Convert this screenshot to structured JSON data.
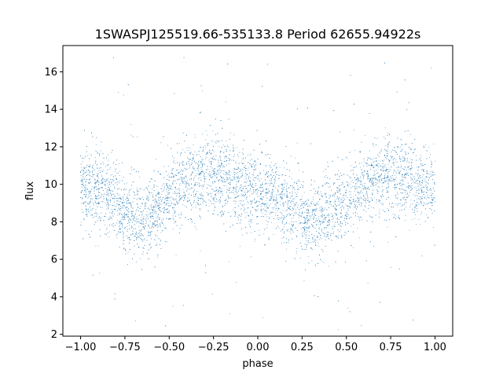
{
  "chart_data": {
    "type": "scatter",
    "title": "1SWASPJ125519.66-535133.8 Period 62655.94922s",
    "xlabel": "phase",
    "ylabel": "flux",
    "xlim": [
      -1.1,
      1.1
    ],
    "ylim": [
      1.9,
      17.4
    ],
    "x_ticks": [
      -1.0,
      -0.75,
      -0.5,
      -0.25,
      0.0,
      0.25,
      0.5,
      0.75,
      1.0
    ],
    "x_tick_labels": [
      "−1.00",
      "−0.75",
      "−0.50",
      "−0.25",
      "0.00",
      "0.25",
      "0.50",
      "0.75",
      "1.00"
    ],
    "y_ticks": [
      2,
      4,
      6,
      8,
      10,
      12,
      14,
      16
    ],
    "y_tick_labels": [
      "2",
      "4",
      "6",
      "8",
      "10",
      "12",
      "14",
      "16"
    ],
    "grid": false,
    "marker_color": "#1f77b4",
    "series": [
      {
        "name": "",
        "x": [
          -1.0,
          -0.95,
          -0.9,
          -0.85,
          -0.8,
          -0.75,
          -0.7,
          -0.65,
          -0.6,
          -0.55,
          -0.5,
          -0.45,
          -0.4,
          -0.35,
          -0.3,
          -0.25,
          -0.2,
          -0.15,
          -0.1,
          -0.05,
          0.0,
          0.05,
          0.1,
          0.15,
          0.2,
          0.25,
          0.3,
          0.35,
          0.4,
          0.45,
          0.5,
          0.55,
          0.6,
          0.65,
          0.7,
          0.75,
          0.8,
          0.85,
          0.9,
          0.95,
          1.0
        ],
        "y": [
          9.9,
          9.6,
          9.7,
          9.5,
          9.0,
          8.6,
          8.3,
          8.2,
          8.4,
          8.8,
          9.3,
          9.7,
          10.0,
          10.3,
          10.5,
          10.5,
          10.4,
          10.1,
          9.9,
          9.7,
          9.6,
          9.4,
          9.2,
          8.9,
          8.6,
          8.4,
          8.2,
          8.2,
          8.4,
          8.7,
          9.1,
          9.5,
          9.9,
          10.2,
          10.4,
          10.5,
          10.4,
          10.2,
          10.0,
          9.9,
          9.9
        ]
      }
    ]
  }
}
